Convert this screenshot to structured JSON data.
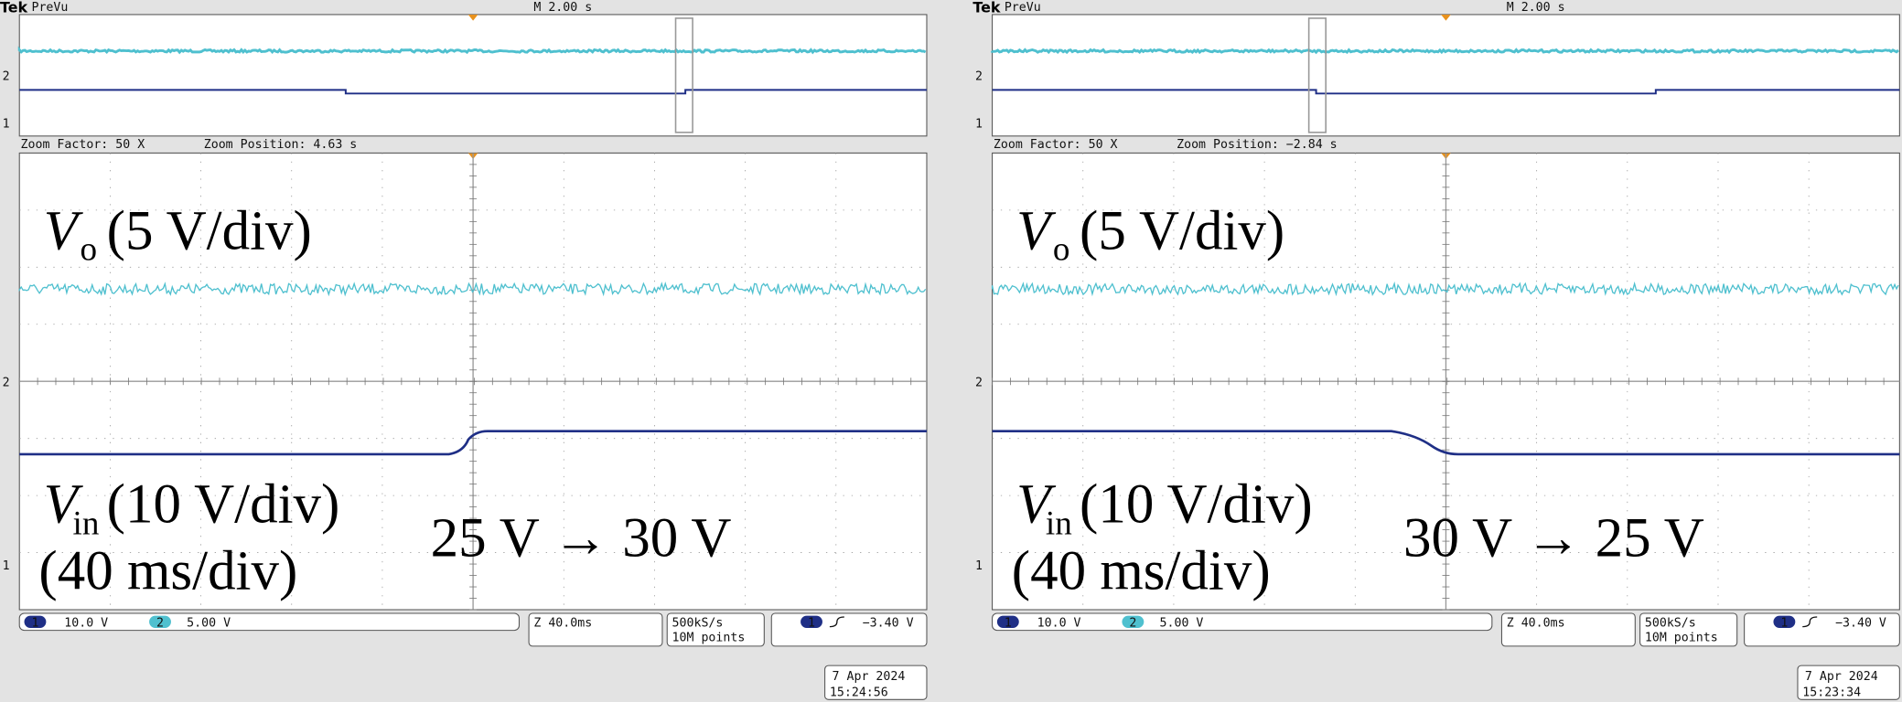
{
  "panels": [
    {
      "brand": "Tek",
      "mode": "PreVu",
      "timebase": "M 2.00 s",
      "zoom_factor": "Zoom Factor: 50 X",
      "zoom_position": "Zoom Position: 4.63 s",
      "vo_symbol": "V",
      "vo_sub": "o",
      "vo_scale": "(5 V/div)",
      "vin_symbol": "V",
      "vin_sub": "in",
      "vin_scale": "(10 V/div)",
      "time_scale": "(40 ms/div)",
      "transition": "25 V → 30 V",
      "ch2_marker": "2",
      "ch1_marker": "1",
      "ch1_label": "1",
      "ch1_scale": "10.0 V",
      "ch2_label": "2",
      "ch2_scale": "5.00 V",
      "zoom": "Z 40.0ms",
      "sample_rate": "500kS/s",
      "record_length": "10M points",
      "trigger_channel": "1",
      "trigger_level": "−3.40 V",
      "date": "7 Apr 2024",
      "time": "15:24:56"
    },
    {
      "brand": "Tek",
      "mode": "PreVu",
      "timebase": "M 2.00 s",
      "zoom_factor": "Zoom Factor: 50 X",
      "zoom_position": "Zoom Position: −2.84 s",
      "vo_symbol": "V",
      "vo_sub": "o",
      "vo_scale": "(5 V/div)",
      "vin_symbol": "V",
      "vin_sub": "in",
      "vin_scale": "(10 V/div)",
      "time_scale": "(40 ms/div)",
      "transition": "30 V → 25 V",
      "ch2_marker": "2",
      "ch1_marker": "1",
      "ch1_label": "1",
      "ch1_scale": "10.0 V",
      "ch2_label": "2",
      "ch2_scale": "5.00 V",
      "zoom": "Z 40.0ms",
      "sample_rate": "500kS/s",
      "record_length": "10M points",
      "trigger_channel": "1",
      "trigger_level": "−3.40 V",
      "date": "7 Apr 2024",
      "time": "15:23:34"
    }
  ]
}
